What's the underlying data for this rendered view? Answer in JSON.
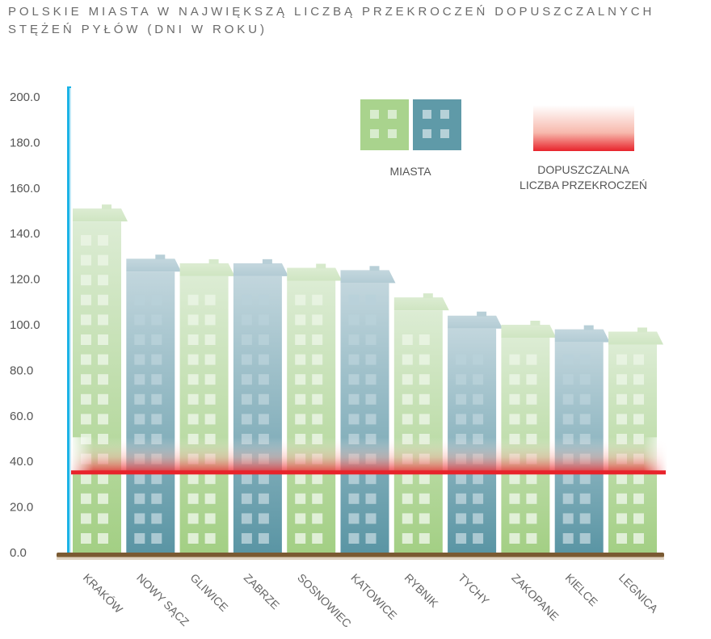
{
  "title_line1": "POLSKIE MIASTA W NAJWIĘKSZĄ LICZBĄ PRZEKROCZEŃ DOPUSZCZALNYCH",
  "title_line2": "STĘŻEŃ PYŁÓW (DNI W ROKU)",
  "legend": {
    "cities_label": "MIASTA",
    "limit_label_line1": "DOPUSZCZALNA",
    "limit_label_line2": "LICZBA PRZEKROCZEŃ"
  },
  "colors": {
    "green_top": "#d8ead0",
    "green_bottom": "#a7d18a",
    "blue_top": "#bdd3da",
    "blue_bottom": "#5e98a6",
    "window_light": "#eaf3e4",
    "limit_line": "#e8232b",
    "axis_line": "#1bb3e6",
    "ground": "#7a5a32"
  },
  "chart_data": {
    "type": "bar",
    "categories": [
      "KRAKÓW",
      "NOWY SĄCZ",
      "GLIWICE",
      "ZABRZE",
      "SOSNOWIEC",
      "KATOWICE",
      "RYBNIK",
      "TYCHY",
      "ZAKOPANE",
      "KIELCE",
      "LEGNICA"
    ],
    "values": [
      151,
      129,
      127,
      127,
      125,
      124,
      112,
      104,
      100,
      98,
      97
    ],
    "colors": [
      "green",
      "blue",
      "green",
      "blue",
      "green",
      "blue",
      "green",
      "blue",
      "green",
      "blue",
      "green"
    ],
    "reference_line": 35,
    "ylim": [
      0,
      200
    ],
    "yticks": [
      0,
      20,
      40,
      60,
      80,
      100,
      120,
      140,
      160,
      180,
      200
    ],
    "ytick_labels": [
      "0.0",
      "20.0",
      "40.0",
      "60.0",
      "80.0",
      "100.0",
      "120.0",
      "140.0",
      "160.0",
      "180.0",
      "200.0"
    ],
    "grid": false
  }
}
